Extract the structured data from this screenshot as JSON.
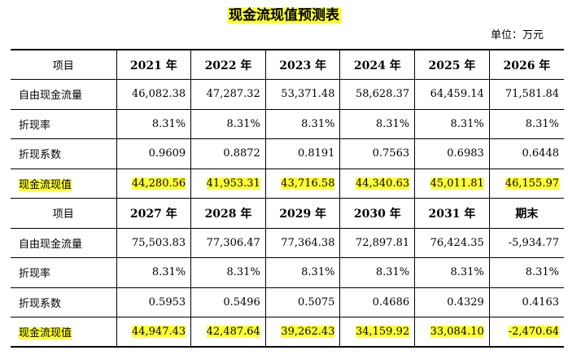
{
  "title": "现金流现值预测表",
  "unit": "单位：万元",
  "block1": {
    "header_label": "项目",
    "years": [
      "2021 年",
      "2022 年",
      "2023 年",
      "2024 年",
      "2025 年",
      "2026 年"
    ],
    "rows": [
      {
        "label": "自由现金流量",
        "values": [
          "46,082.38",
          "47,287.32",
          "53,371.48",
          "58,628.37",
          "64,459.14",
          "71,581.84"
        ]
      },
      {
        "label": "折现率",
        "values": [
          "8.31%",
          "8.31%",
          "8.31%",
          "8.31%",
          "8.31%",
          "8.31%"
        ]
      },
      {
        "label": "折现系数",
        "values": [
          "0.9609",
          "0.8872",
          "0.8191",
          "0.7563",
          "0.6983",
          "0.6448"
        ]
      },
      {
        "label": "现金流现值",
        "values": [
          "44,280.56",
          "41,953.31",
          "43,716.58",
          "44,340.63",
          "45,011.81",
          "46,155.97"
        ]
      }
    ]
  },
  "block2": {
    "header_label": "项目",
    "years": [
      "2027 年",
      "2028 年",
      "2029 年",
      "2030 年",
      "2031 年",
      "期末"
    ],
    "rows": [
      {
        "label": "自由现金流量",
        "values": [
          "75,503.83",
          "77,306.47",
          "77,364.38",
          "72,897.81",
          "76,424.35",
          "-5,934.77"
        ]
      },
      {
        "label": "折现率",
        "values": [
          "8.31%",
          "8.31%",
          "8.31%",
          "8.31%",
          "8.31%",
          "8.31%"
        ]
      },
      {
        "label": "折现系数",
        "values": [
          "0.5953",
          "0.5496",
          "0.5075",
          "0.4686",
          "0.4329",
          "0.4163"
        ]
      },
      {
        "label": "现金流现值",
        "values": [
          "44,947.43",
          "42,487.64",
          "39,262.43",
          "34,159.92",
          "33,084.10",
          "-2,470.64"
        ]
      }
    ]
  },
  "highlight_color": "#ffff33"
}
